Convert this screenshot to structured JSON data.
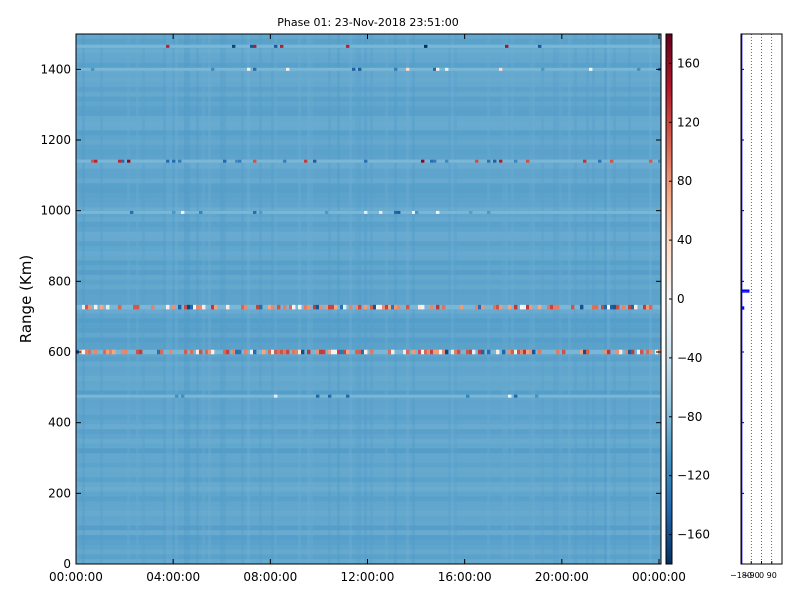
{
  "chart_data": [
    {
      "type": "heatmap",
      "title": "Phase 01: 23-Nov-2018 23:51:00",
      "xlabel": "",
      "ylabel": "Range (Km)",
      "xlim": [
        "00:00:00",
        "24:00:00"
      ],
      "ylim": [
        0,
        1500
      ],
      "x_ticks": [
        "00:00:00",
        "04:00:00",
        "08:00:00",
        "12:00:00",
        "16:00:00",
        "20:00:00",
        "00:00:00"
      ],
      "y_ticks": [
        0,
        200,
        400,
        600,
        800,
        1000,
        1200,
        1400
      ],
      "grid": false,
      "background_value": -95,
      "bands": [
        {
          "range_km": 1465,
          "intensity": "sparse-red"
        },
        {
          "range_km": 1400,
          "intensity": "sparse"
        },
        {
          "range_km": 1140,
          "intensity": "moderate"
        },
        {
          "range_km": 995,
          "intensity": "faint"
        },
        {
          "range_km": 727,
          "intensity": "strong"
        },
        {
          "range_km": 600,
          "intensity": "strong"
        },
        {
          "range_km": 475,
          "intensity": "faint"
        }
      ],
      "colorbar": {
        "colormap": "RdBu_r",
        "vmin": -180,
        "vmax": 180,
        "ticks": [
          -160,
          -120,
          -80,
          -40,
          0,
          40,
          80,
          120,
          160
        ]
      }
    },
    {
      "type": "line",
      "title": "",
      "xlabel": "",
      "ylabel": "",
      "xlim": [
        -180,
        180
      ],
      "ylim": [
        0,
        1500
      ],
      "x_ticks": [
        "−180",
        "−90",
        "0",
        "90"
      ],
      "grid": true,
      "series": [
        {
          "color": "#0000ff",
          "x": [
            -175,
            -175,
            -175,
            -158,
            -158,
            -175,
            -175,
            -175,
            -112,
            -112,
            -175,
            -175
          ],
          "y": [
            0,
            600,
            727,
            727,
            722,
            722,
            770,
            775,
            775,
            770,
            770,
            1500
          ]
        }
      ]
    }
  ]
}
